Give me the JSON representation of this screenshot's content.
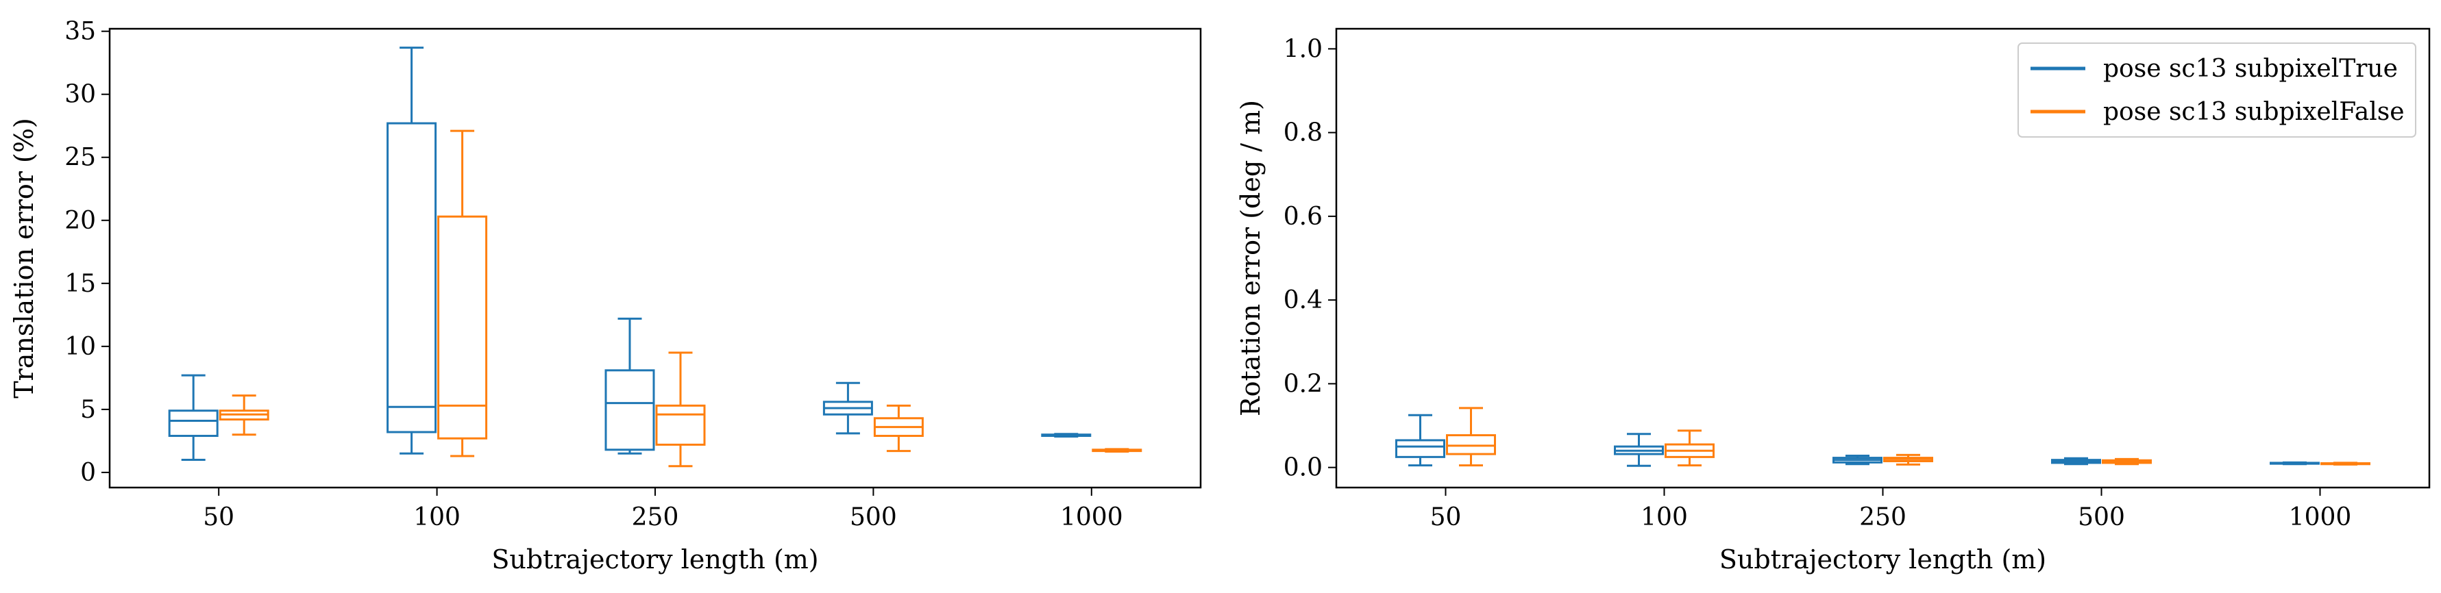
{
  "colors": {
    "series_1": "#1f77b4",
    "series_2": "#ff7f0e"
  },
  "chart_data": [
    {
      "type": "box",
      "categories": [
        "50",
        "100",
        "250",
        "500",
        "1000"
      ],
      "xlabel": "Subtrajectory length (m)",
      "ylabel": "Translation error (%)",
      "ylim": [
        -1.2,
        35.2
      ],
      "yticks": [
        0,
        5,
        10,
        15,
        20,
        25,
        30,
        35
      ],
      "grid": false,
      "series": [
        {
          "name": "pose sc13 subpixelTrue",
          "boxes": [
            {
              "min": 1.0,
              "q1": 2.9,
              "median": 4.1,
              "q3": 4.9,
              "max": 7.7
            },
            {
              "min": 1.5,
              "q1": 3.2,
              "median": 5.2,
              "q3": 27.7,
              "max": 33.7
            },
            {
              "min": 1.5,
              "q1": 1.8,
              "median": 5.5,
              "q3": 8.1,
              "max": 12.2
            },
            {
              "min": 3.1,
              "q1": 4.6,
              "median": 5.1,
              "q3": 5.6,
              "max": 7.1
            },
            {
              "min": 2.85,
              "q1": 2.9,
              "median": 2.95,
              "q3": 3.0,
              "max": 3.05
            }
          ]
        },
        {
          "name": "pose sc13 subpixelFalse",
          "boxes": [
            {
              "min": 3.0,
              "q1": 4.2,
              "median": 4.6,
              "q3": 4.9,
              "max": 6.1
            },
            {
              "min": 1.3,
              "q1": 2.7,
              "median": 5.3,
              "q3": 20.3,
              "max": 27.1
            },
            {
              "min": 0.5,
              "q1": 2.2,
              "median": 4.6,
              "q3": 5.3,
              "max": 9.5
            },
            {
              "min": 1.7,
              "q1": 2.9,
              "median": 3.6,
              "q3": 4.3,
              "max": 5.3
            },
            {
              "min": 1.65,
              "q1": 1.7,
              "median": 1.75,
              "q3": 1.8,
              "max": 1.85
            }
          ]
        }
      ]
    },
    {
      "type": "box",
      "categories": [
        "50",
        "100",
        "250",
        "500",
        "1000"
      ],
      "xlabel": "Subtrajectory length (m)",
      "ylabel": "Rotation error (deg / m)",
      "ylim": [
        -0.048,
        1.048
      ],
      "yticks": [
        "0.0",
        "0.2",
        "0.4",
        "0.6",
        "0.8",
        "1.0"
      ],
      "grid": false,
      "legend": {
        "position": "top-right",
        "entries": [
          "pose sc13 subpixelTrue",
          "pose sc13 subpixelFalse"
        ]
      },
      "series": [
        {
          "name": "pose sc13 subpixelTrue",
          "boxes": [
            {
              "min": 0.005,
              "q1": 0.025,
              "median": 0.05,
              "q3": 0.065,
              "max": 0.125
            },
            {
              "min": 0.004,
              "q1": 0.032,
              "median": 0.04,
              "q3": 0.05,
              "max": 0.08
            },
            {
              "min": 0.008,
              "q1": 0.012,
              "median": 0.018,
              "q3": 0.023,
              "max": 0.028
            },
            {
              "min": 0.008,
              "q1": 0.011,
              "median": 0.015,
              "q3": 0.018,
              "max": 0.022
            },
            {
              "min": 0.008,
              "q1": 0.009,
              "median": 0.01,
              "q3": 0.011,
              "max": 0.012
            }
          ]
        },
        {
          "name": "pose sc13 subpixelFalse",
          "boxes": [
            {
              "min": 0.005,
              "q1": 0.032,
              "median": 0.052,
              "q3": 0.077,
              "max": 0.142
            },
            {
              "min": 0.005,
              "q1": 0.025,
              "median": 0.04,
              "q3": 0.055,
              "max": 0.088
            },
            {
              "min": 0.007,
              "q1": 0.015,
              "median": 0.02,
              "q3": 0.023,
              "max": 0.03
            },
            {
              "min": 0.008,
              "q1": 0.011,
              "median": 0.014,
              "q3": 0.017,
              "max": 0.02
            },
            {
              "min": 0.007,
              "q1": 0.008,
              "median": 0.009,
              "q3": 0.01,
              "max": 0.011
            }
          ]
        }
      ]
    }
  ]
}
